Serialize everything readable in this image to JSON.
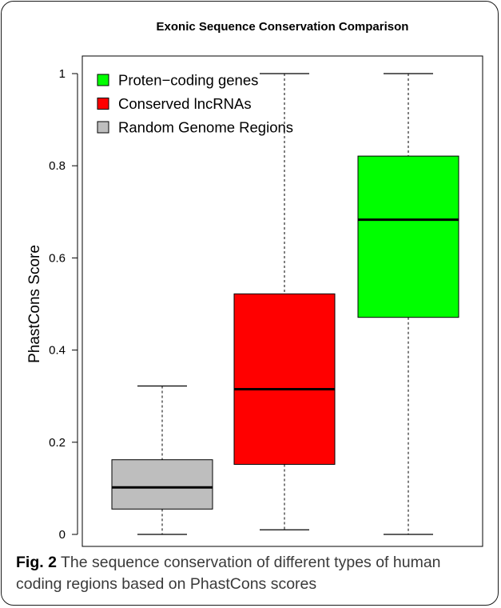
{
  "chart_data": {
    "type": "box",
    "title": "Exonic Sequence Conservation Comparison",
    "xlabel": "",
    "ylabel": "PhastCons Score",
    "ylim": [
      0,
      1
    ],
    "yticks": [
      0,
      0.2,
      0.4,
      0.6,
      0.8,
      1
    ],
    "ytick_labels": [
      "0",
      "0.2",
      "0.4",
      "0.6",
      "0.8",
      "1"
    ],
    "grid": false,
    "legend_position": "top-left",
    "series": [
      {
        "name": "Random Genome Regions",
        "color": "#bebebe",
        "min": 0.0,
        "q1": 0.055,
        "median": 0.102,
        "q3": 0.162,
        "max": 0.322
      },
      {
        "name": "Conserved lncRNAs",
        "color": "#ff0000",
        "min": 0.01,
        "q1": 0.152,
        "median": 0.315,
        "q3": 0.522,
        "max": 1.0
      },
      {
        "name": "Proten−coding genes",
        "color": "#00ff00",
        "min": 0.0,
        "q1": 0.471,
        "median": 0.683,
        "q3": 0.821,
        "max": 1.0
      }
    ],
    "legend": [
      {
        "label": "Proten−coding genes",
        "color": "#00ff00"
      },
      {
        "label": "Conserved lncRNAs",
        "color": "#ff0000"
      },
      {
        "label": "Random Genome Regions",
        "color": "#bebebe"
      }
    ]
  },
  "caption": {
    "label": "Fig. 2",
    "text": " The sequence conservation of different types of human coding regions based on PhastCons scores"
  }
}
